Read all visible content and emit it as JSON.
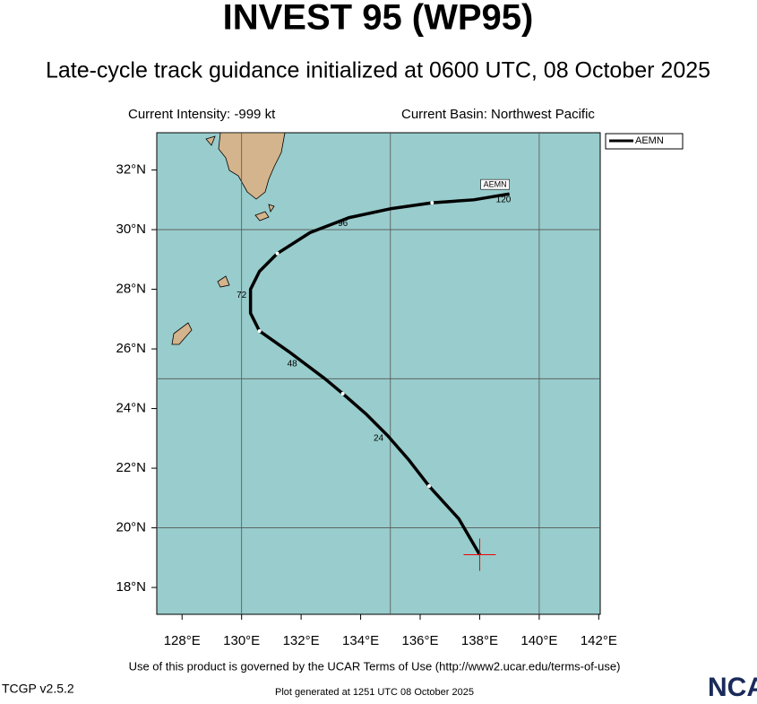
{
  "header": {
    "title": "INVEST 95 (WP95)",
    "subtitle": "Late-cycle track guidance initialized at 0600 UTC, 08 October 2025",
    "intensity": "Current Intensity: -999 kt",
    "basin": "Current Basin: Northwest Pacific"
  },
  "map": {
    "xlim": [
      127.15,
      142.05
    ],
    "ylim": [
      17.1,
      33.25
    ],
    "xticks": [
      {
        "value": 128,
        "label": "128°E"
      },
      {
        "value": 130,
        "label": "130°E"
      },
      {
        "value": 132,
        "label": "132°E"
      },
      {
        "value": 134,
        "label": "134°E"
      },
      {
        "value": 136,
        "label": "136°E"
      },
      {
        "value": 138,
        "label": "138°E"
      },
      {
        "value": 140,
        "label": "140°E"
      },
      {
        "value": 142,
        "label": "142°E"
      }
    ],
    "yticks": [
      {
        "value": 18,
        "label": "18°N"
      },
      {
        "value": 20,
        "label": "20°N"
      },
      {
        "value": 22,
        "label": "22°N"
      },
      {
        "value": 24,
        "label": "24°N"
      },
      {
        "value": 26,
        "label": "26°N"
      },
      {
        "value": 28,
        "label": "28°N"
      },
      {
        "value": 30,
        "label": "30°N"
      },
      {
        "value": 32,
        "label": "32°N"
      }
    ],
    "xgrid": [
      130,
      135,
      140
    ],
    "ygrid": [
      20,
      25,
      30
    ]
  },
  "track": {
    "name": "AEMN",
    "color": "#000000",
    "lon": [
      138.0,
      137.3,
      136.3,
      135.6,
      134.9,
      134.2,
      133.4,
      132.8,
      132.0,
      131.6,
      130.6,
      130.3,
      130.3,
      130.6,
      131.2,
      132.3,
      133.6,
      135.0,
      136.4,
      137.8,
      139.0
    ],
    "lat": [
      19.1,
      20.3,
      21.4,
      22.3,
      23.1,
      23.8,
      24.5,
      25.0,
      25.6,
      25.9,
      26.6,
      27.2,
      28.0,
      28.6,
      29.2,
      29.9,
      30.4,
      30.7,
      30.9,
      31.0,
      31.2
    ],
    "markers_lon": [
      136.3,
      133.4,
      130.6,
      131.2,
      136.4
    ],
    "markers_lat": [
      21.4,
      24.5,
      26.6,
      29.2,
      30.9
    ],
    "hour_labels": [
      "24",
      "48",
      "72",
      "96",
      "120"
    ],
    "hour_lon": [
      134.6,
      131.7,
      130.0,
      133.4,
      138.8
    ],
    "hour_lat": [
      23.0,
      25.5,
      27.8,
      30.2,
      31.0
    ]
  },
  "footer": {
    "terms": "Use of this product is governed by the UCAR Terms of Use (http://www2.ucar.edu/terms-of-use)",
    "version": "TCGP v2.5.2",
    "generated": "Plot generated at 1251 UTC   08 October 2025",
    "logo": "NCAR"
  }
}
